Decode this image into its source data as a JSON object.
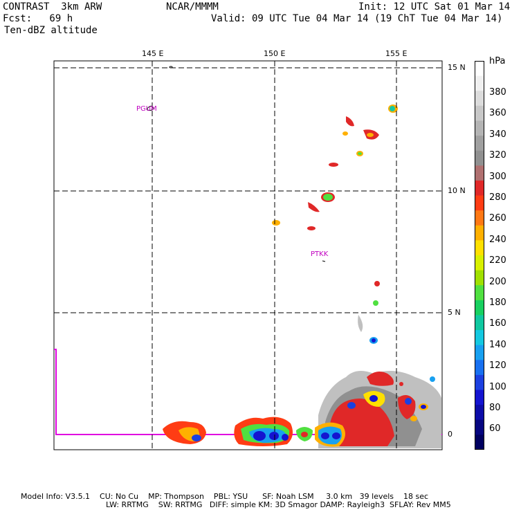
{
  "header": {
    "model": "CONTRAST  3km ARW",
    "org": "NCAR/MMMM",
    "init": "Init: 12 UTC Sat 01 Mar 14",
    "fcst": "Fcst:   69 h",
    "valid": "Valid: 09 UTC Tue 04 Mar 14 (19 ChT Tue 04 Mar 14)",
    "field": "Ten-dBZ altitude"
  },
  "map": {
    "lon_labels": [
      "145 E",
      "150 E",
      "155 E"
    ],
    "lat_labels": [
      "15 N",
      "10 N",
      "5 N",
      "0"
    ],
    "stations": [
      "PGUM",
      "PTKK"
    ]
  },
  "colorbar": {
    "unit": "hPa",
    "labels": [
      "380",
      "360",
      "340",
      "320",
      "300",
      "280",
      "260",
      "240",
      "220",
      "200",
      "180",
      "160",
      "140",
      "120",
      "100",
      "80",
      "60"
    ],
    "colors": [
      "#ffffff",
      "#f0f0f0",
      "#dcdcdc",
      "#c8c8c8",
      "#b4b4b4",
      "#a0a0a0",
      "#909090",
      "#b07070",
      "#e02828",
      "#ff3c14",
      "#ff7814",
      "#ffb000",
      "#ffe000",
      "#d8f000",
      "#a0e000",
      "#50e040",
      "#18d060",
      "#10c8a0",
      "#14c8e0",
      "#18a0f0",
      "#1870f0",
      "#1c40e0",
      "#1414d0",
      "#0c0ca8",
      "#060680",
      "#000060"
    ]
  },
  "footer": {
    "line1": "Model Info: V3.5.1    CU: No Cu    MP: Thompson    PBL: YSU      SF: Noah LSM     3.0 km   39 levels    18 sec",
    "line2": "LW: RRTMG    SW: RRTMG   DIFF: simple KM: 3D Smagor DAMP: Rayleigh3  SFLAY: Rev MM5"
  }
}
